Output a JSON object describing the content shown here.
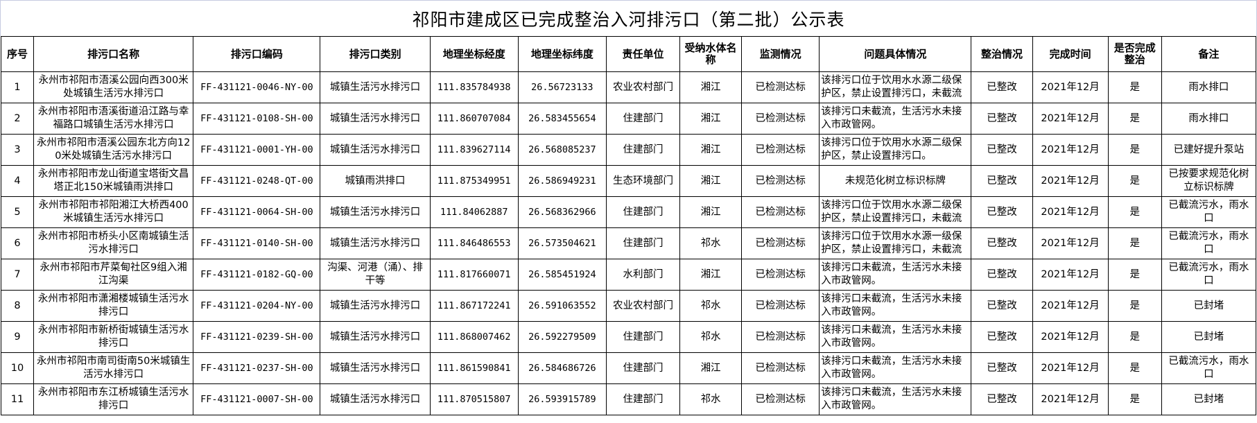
{
  "title": "祁阳市建成区已完成整治入河排污口（第二批）公示表",
  "headers": [
    "序号",
    "排污口名称",
    "排污口编码",
    "排污口类别",
    "地理坐标经度",
    "地理坐标纬度",
    "责任单位",
    "受纳水体名称",
    "监测情况",
    "问题具体情况",
    "整治情况",
    "完成时间",
    "是否完成整治",
    "备注"
  ],
  "rows": [
    [
      "1",
      "永州市祁阳市浯溪公园向西300米处城镇生活污水排污口",
      "FF-431121-0046-NY-00",
      "城镇生活污水排污口",
      "111.835784938",
      "26.56723133",
      "农业农村部门",
      "湘江",
      "已检测达标",
      "该排污口位于饮用水水源二级保护区，禁止设置排污口，未截流",
      "已整改",
      "2021年12月",
      "是",
      "雨水排口"
    ],
    [
      "2",
      "永州市祁阳市浯溪街道沿江路与幸福路口城镇生活污水排污口",
      "FF-431121-0108-SH-00",
      "城镇生活污水排污口",
      "111.860707084",
      "26.583455654",
      "住建部门",
      "湘江",
      "已检测达标",
      "该排污口未截流，生活污水未接入市政管网。",
      "已整改",
      "2021年12月",
      "是",
      "雨水排口"
    ],
    [
      "3",
      "永州市祁阳市浯溪公园东北方向120米处城镇生活污水排污口",
      "FF-431121-0001-YH-00",
      "城镇生活污水排污口",
      "111.839627114",
      "26.568085237",
      "住建部门",
      "湘江",
      "已检测达标",
      "该排污口位于饮用水水源二级保护区，禁止设置排污口。",
      "已整改",
      "2021年12月",
      "是",
      "已建好提升泵站"
    ],
    [
      "4",
      "永州市祁阳市龙山街道宝塔街文昌塔正北150米城镇雨洪排口",
      "FF-431121-0248-QT-00",
      "城镇雨洪排口",
      "111.875349951",
      "26.586949231",
      "生态环境部门",
      "湘江",
      "已检测达标",
      "未规范化树立标识标牌",
      "已整改",
      "2021年12月",
      "是",
      "已按要求规范化树立标识标牌"
    ],
    [
      "5",
      "永州市祁阳市祁阳湘江大桥西400米城镇生活污水排污口",
      "FF-431121-0064-SH-00",
      "城镇生活污水排污口",
      "111.84062887",
      "26.568362966",
      "住建部门",
      "湘江",
      "已检测达标",
      "该排污口位于饮用水水源二级保护区，禁止设置排污口，未截流",
      "已整改",
      "2021年12月",
      "是",
      "已截流污水，雨水口"
    ],
    [
      "6",
      "永州市祁阳市桥头小区南城镇生活污水排污口",
      "FF-431121-0140-SH-00",
      "城镇生活污水排污口",
      "111.846486553",
      "26.573504621",
      "住建部门",
      "祁水",
      "已检测达标",
      "该排污口位于饮用水水源一级保护区，禁止设置排污口，未截流",
      "已整改",
      "2021年12月",
      "是",
      "已截流污水，雨水口"
    ],
    [
      "7",
      "永州市祁阳市芹菜甸社区9组入湘江沟渠",
      "FF-431121-0182-GQ-00",
      "沟渠、河港（涌）、排干等",
      "111.817660071",
      "26.585451924",
      "水利部门",
      "湘江",
      "已检测达标",
      "该排污口未截流，生活污水未接入市政管网。",
      "已整改",
      "2021年12月",
      "是",
      "已截流污水，雨水口"
    ],
    [
      "8",
      "永州市祁阳市潇湘楼城镇生活污水排污口",
      "FF-431121-0204-NY-00",
      "城镇生活污水排污口",
      "111.867172241",
      "26.591063552",
      "农业农村部门",
      "祁水",
      "已检测达标",
      "该排污口未截流，生活污水未接入市政管网。",
      "已整改",
      "2021年12月",
      "是",
      "已封堵"
    ],
    [
      "9",
      "永州市祁阳市新桥街城镇生活污水排污口",
      "FF-431121-0239-SH-00",
      "城镇生活污水排污口",
      "111.868007462",
      "26.592279509",
      "住建部门",
      "祁水",
      "已检测达标",
      "该排污口未截流，生活污水未接入市政管网。",
      "已整改",
      "2021年12月",
      "是",
      "已封堵"
    ],
    [
      "10",
      "永州市祁阳市南司街南50米城镇生活污水排污口",
      "FF-431121-0237-SH-00",
      "城镇生活污水排污口",
      "111.861590841",
      "26.584686726",
      "住建部门",
      "湘江",
      "已检测达标",
      "该排污口未截流，生活污水未接入市政管网。",
      "已整改",
      "2021年12月",
      "是",
      "已截流污水，雨水口"
    ],
    [
      "11",
      "永州市祁阳市东江桥城镇生活污水排污口",
      "FF-431121-0007-SH-00",
      "城镇生活污水排污口",
      "111.870515807",
      "26.593915789",
      "住建部门",
      "祁水",
      "已检测达标",
      "该排污口未截流，生活污水未接入市政管网。",
      "已整改",
      "2021年12月",
      "是",
      "已封堵"
    ]
  ]
}
